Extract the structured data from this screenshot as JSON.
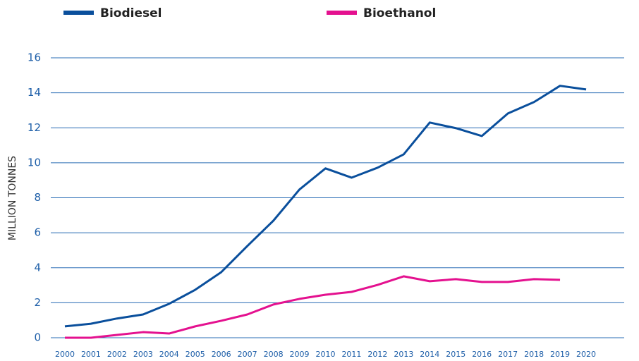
{
  "chart_data": {
    "type": "line",
    "y_label": "MILLION TONNES",
    "categories": [
      "2000",
      "2001",
      "2002",
      "2003",
      "2004",
      "2005",
      "2006",
      "2007",
      "2008",
      "2009",
      "2010",
      "2011",
      "2012",
      "2013",
      "2014",
      "2015",
      "2016",
      "2017",
      "2018",
      "2019",
      "2020"
    ],
    "series": [
      {
        "name": "Biodiesel",
        "color": "#0a4f9c",
        "values": [
          0.65,
          0.8,
          1.1,
          1.33,
          1.94,
          2.74,
          3.75,
          5.24,
          6.69,
          8.47,
          9.68,
          9.15,
          9.72,
          10.48,
          12.3,
          11.98,
          11.53,
          12.82,
          13.47,
          14.4,
          14.19
        ]
      },
      {
        "name": "Bioethanol",
        "color": "#e4118f",
        "values": [
          0,
          0,
          0.16,
          0.32,
          0.24,
          0.65,
          0.97,
          1.33,
          1.9,
          2.22,
          2.46,
          2.62,
          3.02,
          3.51,
          3.23,
          3.35,
          3.19,
          3.19,
          3.35,
          3.31,
          null
        ]
      }
    ],
    "ylim": [
      0,
      16
    ],
    "yticks": [
      0,
      2,
      4,
      6,
      8,
      10,
      12,
      14,
      16
    ],
    "grid": true
  }
}
